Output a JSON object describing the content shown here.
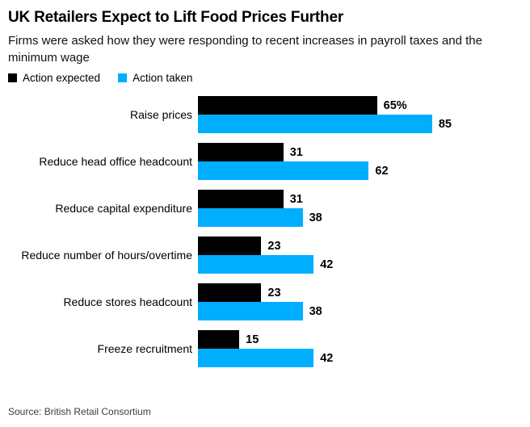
{
  "header": {
    "title": "UK Retailers Expect to Lift Food Prices Further",
    "subtitle": "Firms were asked how they were responding to recent increases in payroll taxes and the minimum wage"
  },
  "chart_data": {
    "type": "bar",
    "orientation": "horizontal",
    "title": "UK Retailers Expect to Lift Food Prices Further",
    "categories": [
      "Raise prices",
      "Reduce head office headcount",
      "Reduce capital expenditure",
      "Reduce number of hours/overtime",
      "Reduce stores headcount",
      "Freeze recruitment"
    ],
    "series": [
      {
        "name": "Action expected",
        "color": "#000000",
        "values": [
          65,
          31,
          31,
          23,
          23,
          15
        ],
        "value_labels": [
          "65%",
          "31",
          "31",
          "23",
          "23",
          "15"
        ]
      },
      {
        "name": "Action taken",
        "color": "#00AEFF",
        "values": [
          85,
          62,
          38,
          42,
          38,
          42
        ],
        "value_labels": [
          "85",
          "62",
          "38",
          "42",
          "38",
          "42"
        ]
      }
    ],
    "xlim": [
      0,
      100
    ],
    "grid": false,
    "legend_position": "top-left",
    "unit_suffix_shown_once": "%"
  },
  "source": "Source: British Retail Consortium"
}
